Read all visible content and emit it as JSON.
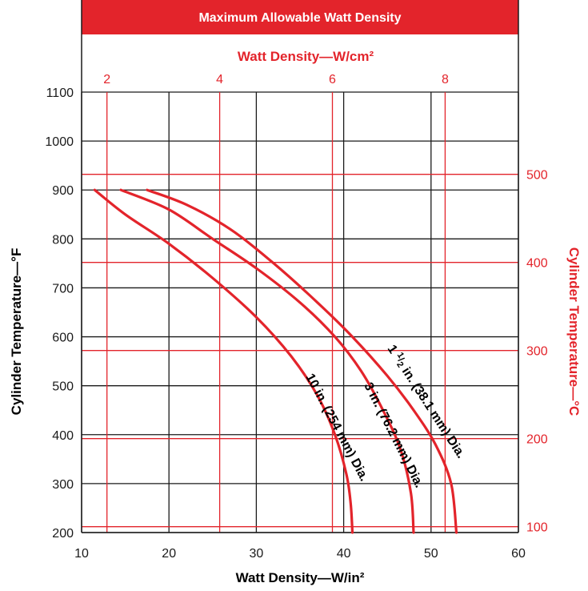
{
  "colors": {
    "accent": "#e3242b",
    "grid": "#1a1a1a",
    "curve": "#e3242b"
  },
  "chart_data": {
    "type": "line",
    "title": "Maximum Allowable Watt Density",
    "xlabel": "Watt Density—W/in²",
    "ylabel": "Cylinder Temperature—°F",
    "xlim": [
      10,
      60
    ],
    "ylim": [
      200,
      1100
    ],
    "x_ticks": [
      "10",
      "20",
      "30",
      "40",
      "50",
      "60"
    ],
    "y_ticks": [
      "200",
      "300",
      "400",
      "500",
      "600",
      "700",
      "800",
      "900",
      "1000",
      "1100"
    ],
    "secondary_x": {
      "label": "Watt Density—W/cm²",
      "ticks": [
        {
          "label": "2",
          "value": 2
        },
        {
          "label": "4",
          "value": 4
        },
        {
          "label": "6",
          "value": 6
        },
        {
          "label": "8",
          "value": 8
        }
      ]
    },
    "secondary_y": {
      "label": "Cylinder Temperature—°C",
      "ticks": [
        {
          "label": "100",
          "value": 100
        },
        {
          "label": "200",
          "value": 200
        },
        {
          "label": "300",
          "value": 300
        },
        {
          "label": "400",
          "value": 400
        },
        {
          "label": "500",
          "value": 500
        }
      ]
    },
    "grid": true,
    "series": [
      {
        "name": "10 in. (254 mm) Dia.",
        "label_parts": [
          "10 in. (254 mm) Dia."
        ],
        "points": [
          [
            11.5,
            900
          ],
          [
            15,
            850
          ],
          [
            20,
            790
          ],
          [
            25,
            720
          ],
          [
            30,
            640
          ],
          [
            34,
            560
          ],
          [
            37,
            480
          ],
          [
            39,
            400
          ],
          [
            40.3,
            320
          ],
          [
            40.8,
            260
          ],
          [
            41,
            200
          ]
        ]
      },
      {
        "name": "3 in. (76.2 mm) Dia.",
        "label_parts": [
          "3 in. (76.2 mm) Dia."
        ],
        "points": [
          [
            14.5,
            900
          ],
          [
            20,
            860
          ],
          [
            25,
            800
          ],
          [
            30,
            740
          ],
          [
            35,
            670
          ],
          [
            39,
            600
          ],
          [
            42,
            530
          ],
          [
            44.5,
            450
          ],
          [
            46.5,
            370
          ],
          [
            47.7,
            280
          ],
          [
            48,
            200
          ]
        ]
      },
      {
        "name": "1 1/2 in. (38.1 mm) Dia.",
        "label_parts": [
          "1 ",
          "1",
          "/",
          "2",
          " in. (38.1 mm) Dia."
        ],
        "points": [
          [
            17.5,
            900
          ],
          [
            22,
            870
          ],
          [
            27,
            820
          ],
          [
            32,
            750
          ],
          [
            37,
            670
          ],
          [
            41,
            600
          ],
          [
            45,
            520
          ],
          [
            48,
            450
          ],
          [
            50.5,
            380
          ],
          [
            52.3,
            300
          ],
          [
            52.9,
            200
          ]
        ]
      }
    ]
  }
}
